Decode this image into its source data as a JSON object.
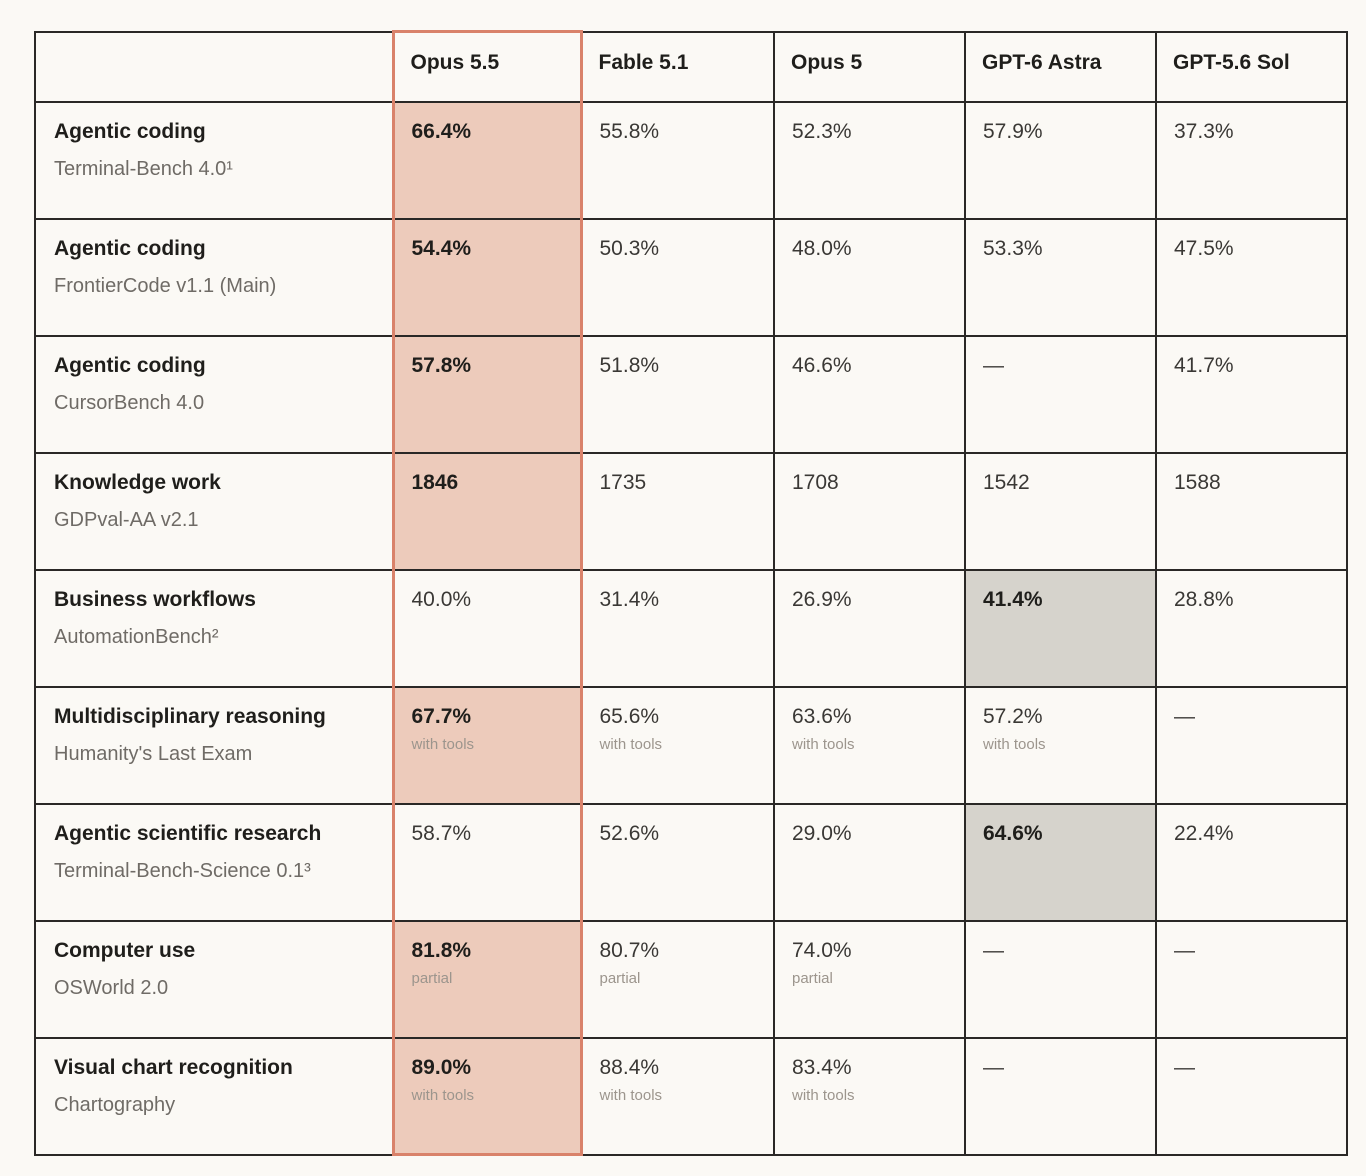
{
  "chart_data": {
    "type": "table",
    "columns": [
      "",
      "Opus 5.5",
      "Fable 5.1",
      "Opus 5",
      "GPT-6 Astra",
      "GPT-5.6 Sol"
    ],
    "rows": [
      {
        "category": "Agentic coding",
        "benchmark": "Terminal-Bench 4.0¹",
        "cells": [
          {
            "value": "66.4%",
            "note": "",
            "bold": true,
            "highlight": "opus"
          },
          {
            "value": "55.8%",
            "note": "",
            "bold": false,
            "highlight": ""
          },
          {
            "value": "52.3%",
            "note": "",
            "bold": false,
            "highlight": ""
          },
          {
            "value": "57.9%",
            "note": "",
            "bold": false,
            "highlight": ""
          },
          {
            "value": "37.3%",
            "note": "",
            "bold": false,
            "highlight": ""
          }
        ]
      },
      {
        "category": "Agentic coding",
        "benchmark": "FrontierCode v1.1 (Main)",
        "cells": [
          {
            "value": "54.4%",
            "note": "",
            "bold": true,
            "highlight": "opus"
          },
          {
            "value": "50.3%",
            "note": "",
            "bold": false,
            "highlight": ""
          },
          {
            "value": "48.0%",
            "note": "",
            "bold": false,
            "highlight": ""
          },
          {
            "value": "53.3%",
            "note": "",
            "bold": false,
            "highlight": ""
          },
          {
            "value": "47.5%",
            "note": "",
            "bold": false,
            "highlight": ""
          }
        ]
      },
      {
        "category": "Agentic coding",
        "benchmark": "CursorBench 4.0",
        "cells": [
          {
            "value": "57.8%",
            "note": "",
            "bold": true,
            "highlight": "opus"
          },
          {
            "value": "51.8%",
            "note": "",
            "bold": false,
            "highlight": ""
          },
          {
            "value": "46.6%",
            "note": "",
            "bold": false,
            "highlight": ""
          },
          {
            "value": "—",
            "note": "",
            "bold": false,
            "highlight": ""
          },
          {
            "value": "41.7%",
            "note": "",
            "bold": false,
            "highlight": ""
          }
        ]
      },
      {
        "category": "Knowledge work",
        "benchmark": "GDPval-AA v2.1",
        "cells": [
          {
            "value": "1846",
            "note": "",
            "bold": true,
            "highlight": "opus"
          },
          {
            "value": "1735",
            "note": "",
            "bold": false,
            "highlight": ""
          },
          {
            "value": "1708",
            "note": "",
            "bold": false,
            "highlight": ""
          },
          {
            "value": "1542",
            "note": "",
            "bold": false,
            "highlight": ""
          },
          {
            "value": "1588",
            "note": "",
            "bold": false,
            "highlight": ""
          }
        ]
      },
      {
        "category": "Business workflows",
        "benchmark": "AutomationBench²",
        "cells": [
          {
            "value": "40.0%",
            "note": "",
            "bold": false,
            "highlight": ""
          },
          {
            "value": "31.4%",
            "note": "",
            "bold": false,
            "highlight": ""
          },
          {
            "value": "26.9%",
            "note": "",
            "bold": false,
            "highlight": ""
          },
          {
            "value": "41.4%",
            "note": "",
            "bold": true,
            "highlight": "gray"
          },
          {
            "value": "28.8%",
            "note": "",
            "bold": false,
            "highlight": ""
          }
        ]
      },
      {
        "category": "Multidisciplinary reasoning",
        "benchmark": "Humanity's Last Exam",
        "cells": [
          {
            "value": "67.7%",
            "note": "with tools",
            "bold": true,
            "highlight": "opus"
          },
          {
            "value": "65.6%",
            "note": "with tools",
            "bold": false,
            "highlight": ""
          },
          {
            "value": "63.6%",
            "note": "with tools",
            "bold": false,
            "highlight": ""
          },
          {
            "value": "57.2%",
            "note": "with tools",
            "bold": false,
            "highlight": ""
          },
          {
            "value": "—",
            "note": "",
            "bold": false,
            "highlight": ""
          }
        ]
      },
      {
        "category": "Agentic scientific research",
        "benchmark": "Terminal-Bench-Science 0.1³",
        "cells": [
          {
            "value": "58.7%",
            "note": "",
            "bold": false,
            "highlight": ""
          },
          {
            "value": "52.6%",
            "note": "",
            "bold": false,
            "highlight": ""
          },
          {
            "value": "29.0%",
            "note": "",
            "bold": false,
            "highlight": ""
          },
          {
            "value": "64.6%",
            "note": "",
            "bold": true,
            "highlight": "gray"
          },
          {
            "value": "22.4%",
            "note": "",
            "bold": false,
            "highlight": ""
          }
        ]
      },
      {
        "category": "Computer use",
        "benchmark": "OSWorld 2.0",
        "cells": [
          {
            "value": "81.8%",
            "note": "partial",
            "bold": true,
            "highlight": "opus"
          },
          {
            "value": "80.7%",
            "note": "partial",
            "bold": false,
            "highlight": ""
          },
          {
            "value": "74.0%",
            "note": "partial",
            "bold": false,
            "highlight": ""
          },
          {
            "value": "—",
            "note": "",
            "bold": false,
            "highlight": ""
          },
          {
            "value": "—",
            "note": "",
            "bold": false,
            "highlight": ""
          }
        ]
      },
      {
        "category": "Visual chart recognition",
        "benchmark": "Chartography",
        "cells": [
          {
            "value": "89.0%",
            "note": "with tools",
            "bold": true,
            "highlight": "opus"
          },
          {
            "value": "88.4%",
            "note": "with tools",
            "bold": false,
            "highlight": ""
          },
          {
            "value": "83.4%",
            "note": "with tools",
            "bold": false,
            "highlight": ""
          },
          {
            "value": "—",
            "note": "",
            "bold": false,
            "highlight": ""
          },
          {
            "value": "—",
            "note": "",
            "bold": false,
            "highlight": ""
          }
        ]
      }
    ]
  },
  "colors": {
    "opus_highlight": "#edcbbb",
    "opus_border": "#d9826a",
    "best_other_highlight": "#d6d3cc",
    "grid": "#2a2826",
    "background": "#fbf9f5"
  }
}
